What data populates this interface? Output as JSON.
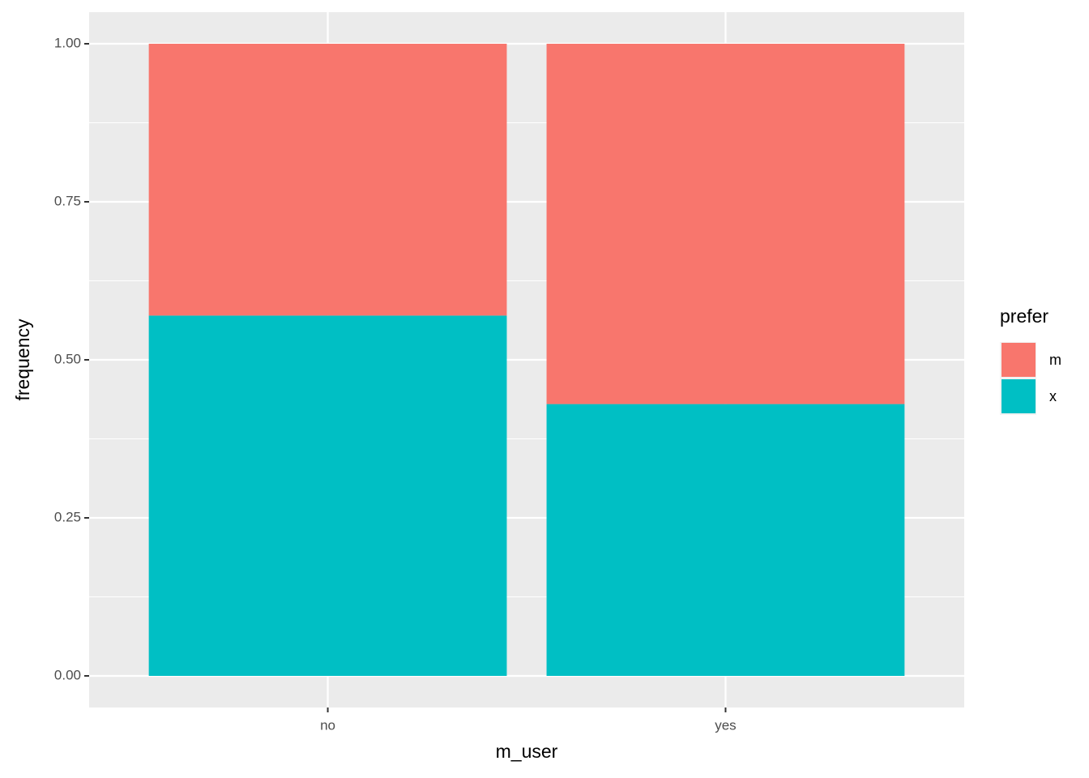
{
  "chart_data": {
    "type": "bar",
    "stacked": true,
    "x_label": "m_user",
    "y_label": "frequency",
    "categories": [
      "no",
      "yes"
    ],
    "legend_title": "prefer",
    "series": [
      {
        "name": "m",
        "color": "#f8766d",
        "values": [
          0.43,
          0.57
        ]
      },
      {
        "name": "x",
        "color": "#00bfc4",
        "values": [
          0.57,
          0.43
        ]
      }
    ],
    "ylim": [
      -0.05,
      1.05
    ],
    "yticks": [
      {
        "value": 0,
        "label": "0.00"
      },
      {
        "value": 0.25,
        "label": "0.25"
      },
      {
        "value": 0.5,
        "label": "0.50"
      },
      {
        "value": 0.75,
        "label": "0.75"
      },
      {
        "value": 1,
        "label": "1.00"
      }
    ],
    "grid": true,
    "legend": "right"
  }
}
